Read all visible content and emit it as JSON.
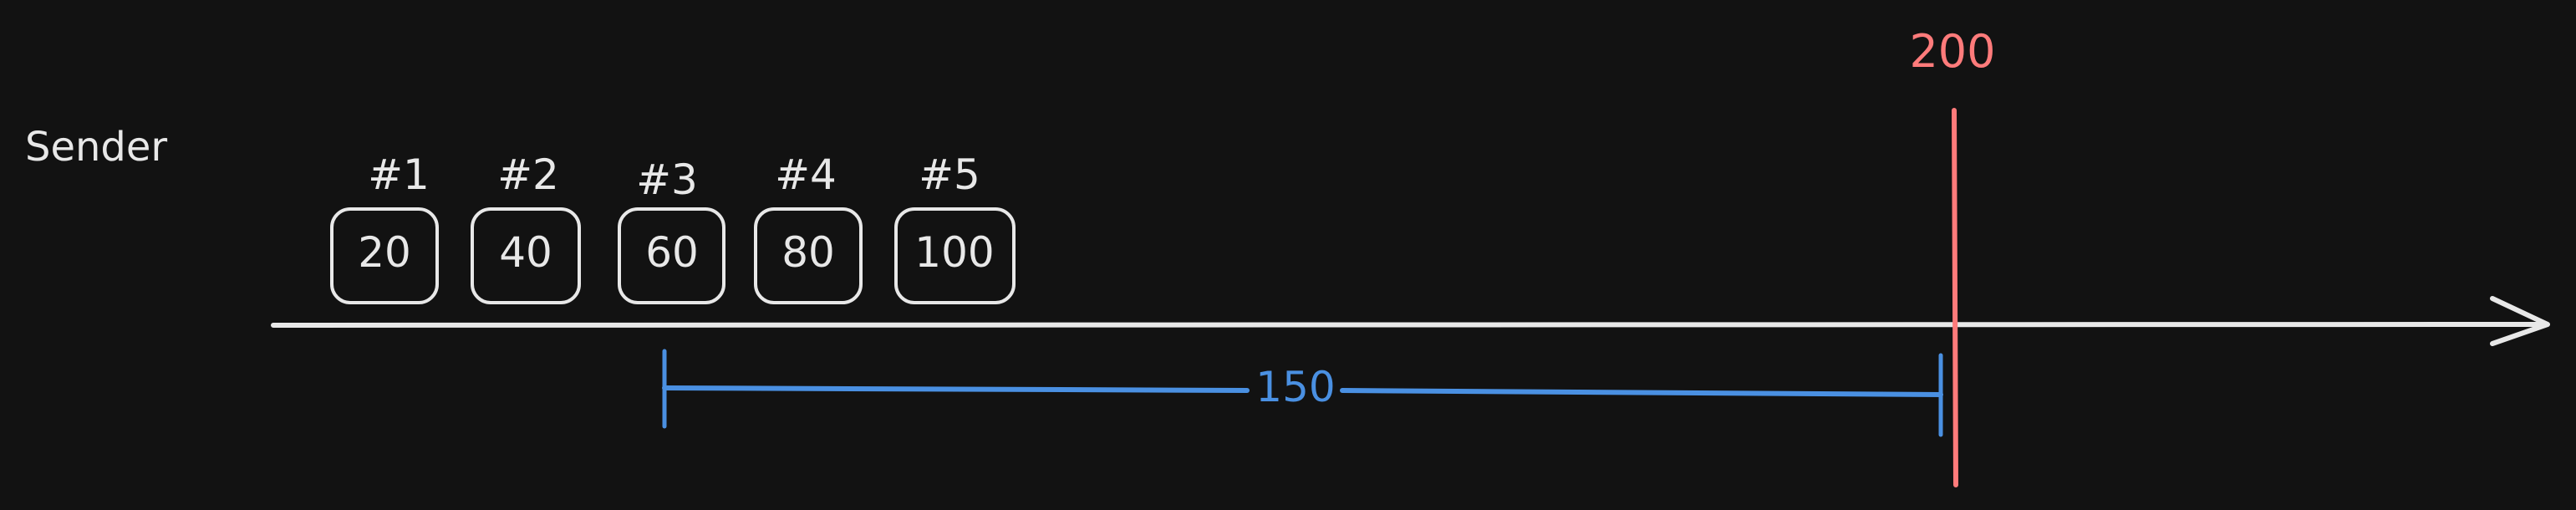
{
  "colors": {
    "background": "#121212",
    "foreground": "#e8e8e8",
    "marker": "#ff7b7b",
    "span": "#4a90e2"
  },
  "sender_label": "Sender",
  "packets": [
    {
      "id": "#1",
      "value": "20"
    },
    {
      "id": "#2",
      "value": "40"
    },
    {
      "id": "#3",
      "value": "60"
    },
    {
      "id": "#4",
      "value": "80"
    },
    {
      "id": "#5",
      "value": "100"
    }
  ],
  "marker": {
    "label": "200"
  },
  "span": {
    "label": "150"
  }
}
